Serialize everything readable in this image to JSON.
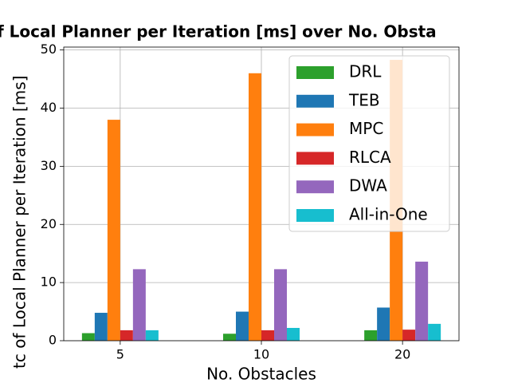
{
  "chart_data": {
    "type": "bar",
    "title": "f Local Planner per Iteration [ms] over No. Obsta",
    "x_label": "No. Obstacles",
    "y_label": "tc of Local Planner per Iteration [ms]",
    "categories": [
      "5",
      "10",
      "20"
    ],
    "series": [
      {
        "name": "DRL",
        "color": "#2ca02c",
        "values": [
          1.3,
          1.2,
          1.8
        ]
      },
      {
        "name": "TEB",
        "color": "#1f77b4",
        "values": [
          4.8,
          5.0,
          5.7
        ]
      },
      {
        "name": "MPC",
        "color": "#ff7f0e",
        "values": [
          38,
          46,
          48.3
        ]
      },
      {
        "name": "RLCA",
        "color": "#d62728",
        "values": [
          1.8,
          1.8,
          1.9
        ]
      },
      {
        "name": "DWA",
        "color": "#9467bd",
        "values": [
          12.3,
          12.3,
          13.6
        ]
      },
      {
        "name": "All-in-One",
        "color": "#17becf",
        "values": [
          1.8,
          2.2,
          2.9
        ]
      }
    ],
    "ylim": [
      0,
      50.5
    ],
    "yticks": [
      0,
      10,
      20,
      30,
      40,
      50
    ],
    "grid": true,
    "legend": "upper right"
  }
}
